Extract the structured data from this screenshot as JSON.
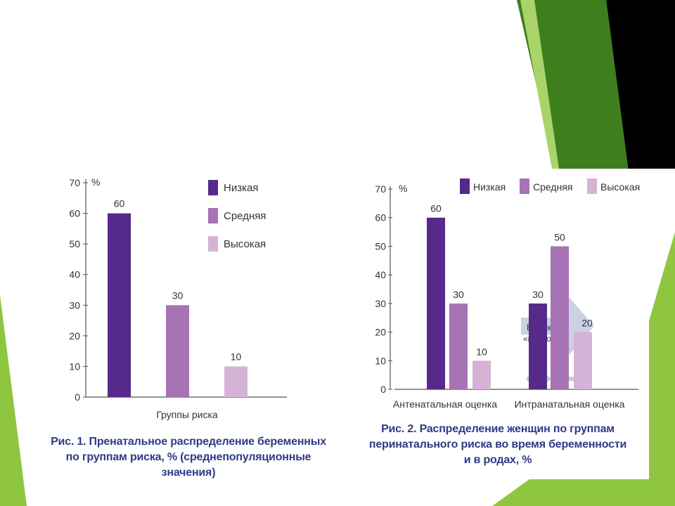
{
  "colors": {
    "low": "#552a8a",
    "medium": "#a673b4",
    "high": "#d5b3d6",
    "axis": "#555555",
    "caption": "#2f3a86",
    "green_dark": "#3f7e1d",
    "green_light": "#8ec63f",
    "black": "#000000",
    "arrow": "#c5cbe0"
  },
  "legend": [
    "Низкая",
    "Средняя",
    "Высокая"
  ],
  "chart_data": [
    {
      "type": "bar",
      "title": "Рис. 1. Пренатальное распределение беременных по группам риска, % (среднепопуляционные значения)",
      "ylabel": "%",
      "xlabel": "Группы риска",
      "ylim": [
        0,
        70
      ],
      "yticks": [
        0,
        10,
        20,
        30,
        40,
        50,
        60,
        70
      ],
      "categories": [
        "Низкая",
        "Средняя",
        "Высокая"
      ],
      "values": [
        60,
        30,
        10
      ],
      "legend_position": "top-right"
    },
    {
      "type": "bar",
      "title": "Рис. 2. Распределение женщин по группам перинатального риска во время беременности и в родах, %",
      "ylabel": "%",
      "ylim": [
        0,
        70
      ],
      "yticks": [
        0,
        10,
        20,
        30,
        40,
        50,
        60,
        70
      ],
      "categories": [
        "Антенатальная оценка",
        "Интранатальная оценка"
      ],
      "series": [
        {
          "name": "Низкая",
          "values": [
            60,
            30
          ]
        },
        {
          "name": "Средняя",
          "values": [
            30,
            50
          ]
        },
        {
          "name": "Высокая",
          "values": [
            10,
            20
          ]
        }
      ],
      "annotation": [
        "Высокий",
        "«прирост»"
      ],
      "legend_position": "top"
    }
  ],
  "captions": {
    "fig1": [
      "Рис. 1. Пренатальное распределение беременных",
      "по группам риска, % (среднепопуляционные значения)"
    ],
    "fig2": [
      "Рис. 2.  Распределение женщин по группам",
      "перинатального риска во время беременности",
      "и в родах, %"
    ]
  }
}
